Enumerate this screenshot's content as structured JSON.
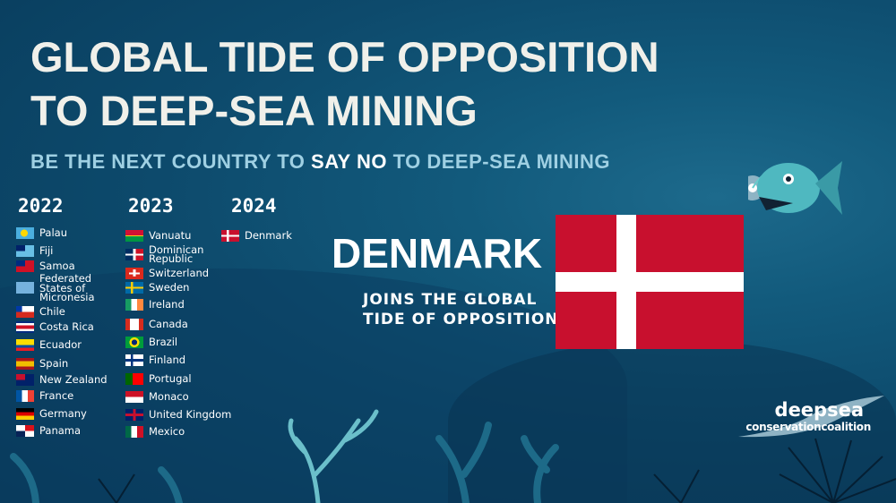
{
  "title_line1": "GLOBAL TIDE OF OPPOSITION",
  "title_line2": "TO DEEP-SEA MINING",
  "subtitle": {
    "before": "BE THE NEXT COUNTRY TO ",
    "highlight": "SAY NO",
    "after": " TO DEEP-SEA MINING"
  },
  "columns": [
    {
      "year": "2022",
      "countries": [
        "Palau",
        "Fiji",
        "Samoa",
        "Federated States of Micronesia",
        "Chile",
        "Costa Rica",
        "Ecuador",
        "Spain",
        "New Zealand",
        "France",
        "Germany",
        "Panama"
      ]
    },
    {
      "year": "2023",
      "countries": [
        "Vanuatu",
        "Dominican Republic",
        "Switzerland",
        "Sweden",
        "Ireland",
        "Canada",
        "Brazil",
        "Finland",
        "Portugal",
        "Monaco",
        "United Kingdom",
        "Mexico"
      ]
    },
    {
      "year": "2024",
      "countries": [
        "Denmark"
      ]
    }
  ],
  "feature": {
    "country": "DENMARK",
    "line1": "JOINS THE GLOBAL",
    "line2": "TIDE OF OPPOSITION",
    "flag": "denmark-flag"
  },
  "logo": {
    "line1": "deepsea",
    "line2": "conservationcoalition"
  },
  "colors": {
    "background": "#0d4a6c",
    "subtitle": "#9fd0e3",
    "title": "#f0f0ea",
    "denmark_red": "#c8102e"
  }
}
